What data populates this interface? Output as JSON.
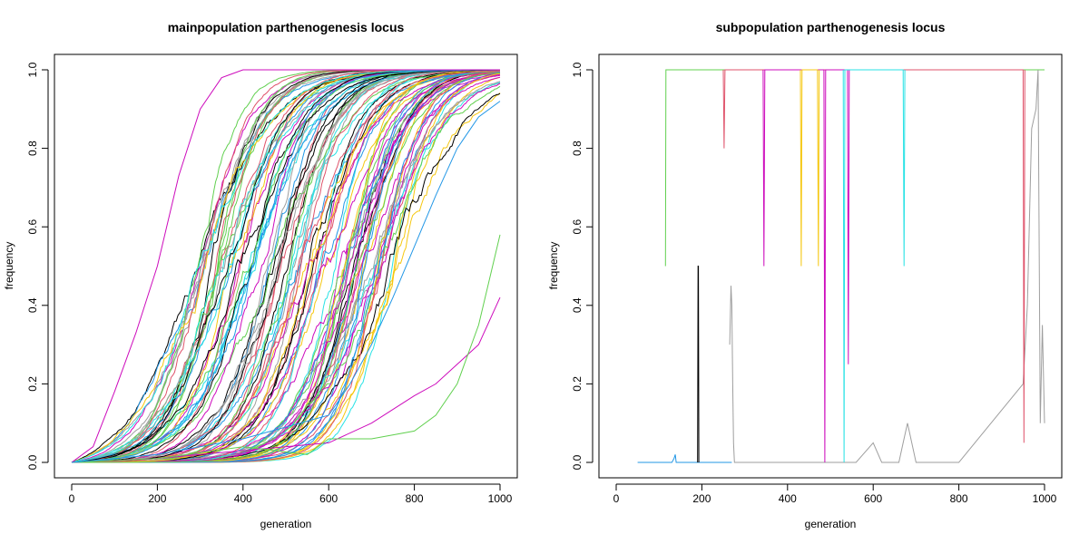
{
  "chart_data": [
    {
      "type": "line",
      "title": "mainpopulation parthenogenesis locus",
      "xlabel": "generation",
      "ylabel": "frequency",
      "xlim": [
        0,
        1000
      ],
      "ylim": [
        0,
        1
      ],
      "x_ticks": [
        "0",
        "200",
        "400",
        "600",
        "800",
        "1000"
      ],
      "y_ticks": [
        "0.0",
        "0.2",
        "0.4",
        "0.6",
        "0.8",
        "1.0"
      ],
      "grid": false,
      "legend": "none",
      "replicates": 100,
      "series_pattern": "sigmoid sweeps from 0 at generation 0 toward 1; most reach ~0.5 between generations 250 and 750",
      "highlighted_series": [
        {
          "color": "#CD0BBC",
          "x": [
            0,
            50,
            100,
            150,
            200,
            250,
            300,
            350,
            400,
            450,
            1000
          ],
          "y": [
            0,
            0.04,
            0.18,
            0.33,
            0.5,
            0.73,
            0.9,
            0.98,
            1.0,
            1.0,
            1.0
          ]
        },
        {
          "color": "#CD0BBC",
          "x": [
            0,
            200,
            400,
            600,
            700,
            800,
            850,
            900,
            950,
            1000
          ],
          "y": [
            0,
            0.01,
            0.03,
            0.05,
            0.1,
            0.17,
            0.2,
            0.25,
            0.3,
            0.42
          ]
        },
        {
          "color": "#61D04F",
          "x": [
            0,
            200,
            400,
            550,
            600,
            700,
            800,
            850,
            900,
            950,
            1000
          ],
          "y": [
            0,
            0.01,
            0.04,
            0.02,
            0.06,
            0.06,
            0.08,
            0.12,
            0.2,
            0.35,
            0.58
          ]
        },
        {
          "color": "#2297E6",
          "x": [
            0,
            200,
            400,
            600,
            650,
            700,
            750,
            800,
            850,
            900,
            950,
            1000
          ],
          "y": [
            0,
            0.02,
            0.06,
            0.12,
            0.2,
            0.3,
            0.42,
            0.55,
            0.68,
            0.8,
            0.88,
            0.92
          ]
        }
      ],
      "palette": [
        "#000000",
        "#DF536B",
        "#61D04F",
        "#2297E6",
        "#28E2E5",
        "#CD0BBC",
        "#F5C710",
        "#9E9E9E"
      ]
    },
    {
      "type": "line",
      "title": "subpopulation parthenogenesis locus",
      "xlabel": "generation",
      "ylabel": "frequency",
      "xlim": [
        0,
        1000
      ],
      "ylim": [
        0,
        1
      ],
      "x_ticks": [
        "0",
        "200",
        "400",
        "600",
        "800",
        "1000"
      ],
      "y_ticks": [
        "0.0",
        "0.2",
        "0.4",
        "0.6",
        "0.8",
        "1.0"
      ],
      "grid": false,
      "legend": "none",
      "series_pattern": "discrete jumps; most series fixed at 1.0 from about generation 115 with dips to 0.5 or 0; one series near 0 with transient spikes",
      "series": [
        {
          "color": "#2297E6",
          "x": [
            50,
            130,
            135,
            138,
            140,
            150,
            270
          ],
          "y": [
            0,
            0,
            0.01,
            0.02,
            0,
            0,
            0
          ]
        },
        {
          "color": "#000000",
          "x": [
            190,
            191,
            192,
            193
          ],
          "y": [
            0,
            0.5,
            0.5,
            0
          ]
        },
        {
          "color": "#61D04F",
          "x": [
            115,
            116,
            117,
            118,
            1000
          ],
          "y": [
            0.5,
            1,
            1,
            1,
            1
          ]
        },
        {
          "color": "#9E9E9E",
          "x": [
            265,
            268,
            270,
            272,
            274,
            276,
            280,
            300,
            470,
            500,
            560,
            600,
            620,
            660,
            670,
            680,
            700,
            800,
            950,
            960,
            970,
            980,
            985,
            990,
            995,
            1000
          ],
          "y": [
            0.3,
            0.45,
            0.4,
            0.2,
            0.05,
            0,
            0,
            0,
            0,
            0,
            0,
            0.05,
            0,
            0,
            0.05,
            0.1,
            0,
            0,
            0.2,
            0.4,
            0.85,
            0.9,
            1,
            0.1,
            0.35,
            0.1
          ]
        },
        {
          "color": "#DF536B",
          "x": [
            250,
            252,
            254,
            950,
            952,
            954
          ],
          "y": [
            1,
            0.8,
            1,
            1,
            0.05,
            1
          ]
        },
        {
          "color": "#CD0BBC",
          "x": [
            343,
            345,
            347,
            485,
            487,
            489,
            540,
            542,
            544
          ],
          "y": [
            1,
            0.5,
            1,
            1,
            0,
            1,
            1,
            0.25,
            1
          ]
        },
        {
          "color": "#F5C710",
          "x": [
            430,
            432,
            434,
            470,
            472,
            474
          ],
          "y": [
            1,
            0.5,
            1,
            1,
            0.5,
            1
          ]
        },
        {
          "color": "#28E2E5",
          "x": [
            530,
            532,
            534,
            670,
            672,
            674
          ],
          "y": [
            1,
            0,
            1,
            1,
            0.5,
            1
          ]
        }
      ]
    }
  ]
}
